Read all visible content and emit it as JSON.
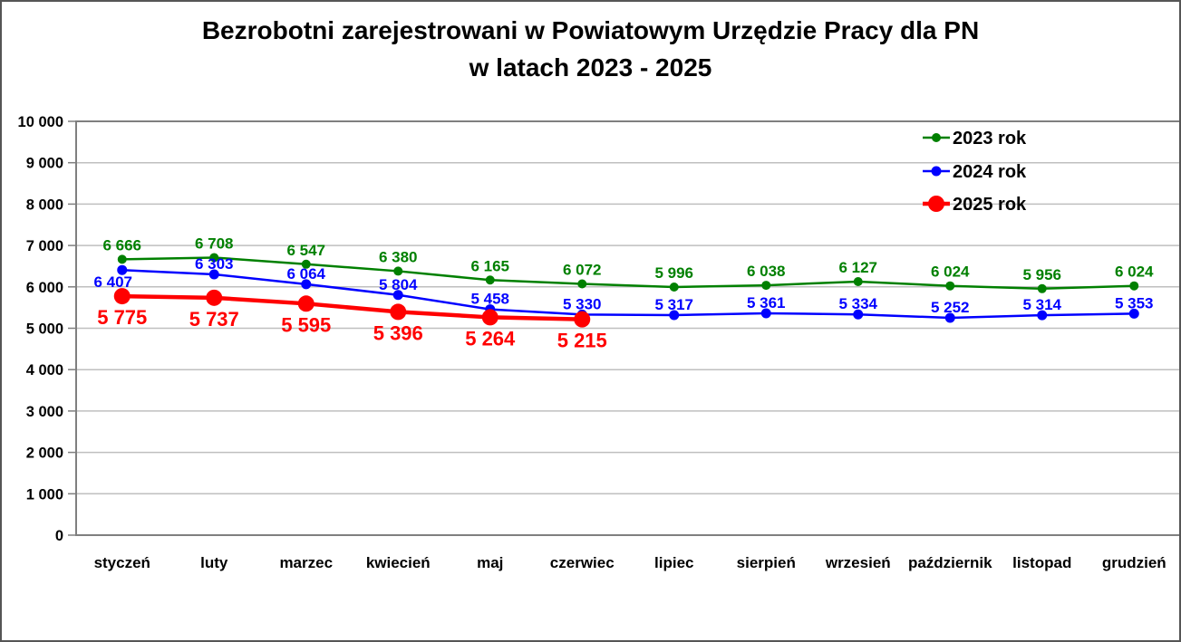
{
  "title": {
    "line1": "Bezrobotni zarejestrowani w Powiatowym Urzędzie Pracy dla PN",
    "line2": "w latach 2023 - 2025"
  },
  "chart_data": {
    "type": "line",
    "title": "Bezrobotni zarejestrowani w Powiatowym Urzędzie Pracy dla PN w latach 2023 - 2025",
    "xlabel": "",
    "ylabel": "",
    "categories": [
      "styczeń",
      "luty",
      "marzec",
      "kwiecień",
      "maj",
      "czerwiec",
      "lipiec",
      "sierpień",
      "wrzesień",
      "październik",
      "listopad",
      "grudzień"
    ],
    "series": [
      {
        "name": "2023 rok",
        "color": "#008000",
        "values": [
          6666,
          6708,
          6547,
          6380,
          6165,
          6072,
          5996,
          6038,
          6127,
          6024,
          5956,
          6024
        ],
        "line_width": 2.5,
        "marker_radius": 5,
        "label_font_size": 17,
        "label_dy": -10,
        "label_overrides": {}
      },
      {
        "name": "2024 rok",
        "color": "#0000FF",
        "values": [
          6407,
          6303,
          6064,
          5804,
          5458,
          5330,
          5317,
          5361,
          5334,
          5252,
          5314,
          5353
        ],
        "line_width": 2.5,
        "marker_radius": 5.5,
        "label_font_size": 17,
        "label_dy": -6,
        "label_overrides": {
          "0": {
            "dy": 19,
            "dx": -10
          }
        }
      },
      {
        "name": "2025 rok",
        "color": "#FF0000",
        "values": [
          5775,
          5737,
          5595,
          5396,
          5264,
          5215
        ],
        "line_width": 4.5,
        "marker_radius": 9,
        "label_font_size": 22,
        "label_dy": 31,
        "label_overrides": {}
      }
    ],
    "ylim": [
      0,
      10000
    ],
    "y_tick_step": 1000,
    "y_tick_labels": [
      "0",
      "1 000",
      "2 000",
      "3 000",
      "4 000",
      "5 000",
      "6 000",
      "7 000",
      "8 000",
      "9 000",
      "10 000"
    ],
    "grid": true,
    "legend_position": "top-right",
    "legend_entries": [
      "2023 rok",
      "2024 rok",
      "2025 rok"
    ],
    "number_format": "space-thousands"
  }
}
